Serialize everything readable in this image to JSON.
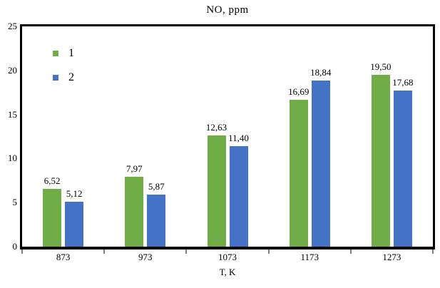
{
  "chart_data": {
    "type": "bar",
    "title": "NO, ppm",
    "xlabel": "T, K",
    "ylabel": "",
    "ylim": [
      0,
      25
    ],
    "y_ticks": [
      0,
      5,
      10,
      15,
      20,
      25
    ],
    "grid": false,
    "legend_position": "inside-top-left",
    "categories": [
      "873",
      "973",
      "1073",
      "1173",
      "1273"
    ],
    "series": [
      {
        "name": "1",
        "color": "#70AD47",
        "values": [
          6.52,
          7.97,
          12.63,
          16.69,
          19.5
        ],
        "labels": [
          "6,52",
          "7,97",
          "12,63",
          "16,69",
          "19,50"
        ]
      },
      {
        "name": "2",
        "color": "#4472C4",
        "values": [
          5.12,
          5.87,
          11.4,
          18.84,
          17.68
        ],
        "labels": [
          "5,12",
          "5,87",
          "11,40",
          "18,84",
          "17,68"
        ]
      }
    ]
  }
}
